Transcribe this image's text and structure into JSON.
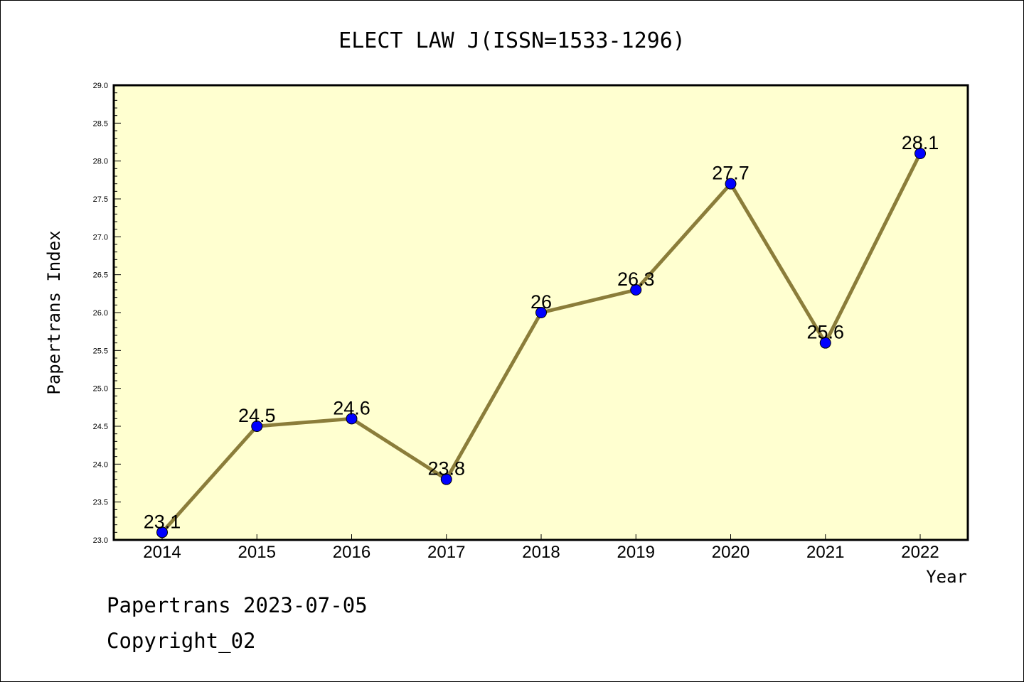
{
  "chart_data": {
    "type": "line",
    "title": "ELECT LAW J(ISSN=1533-1296)",
    "xlabel": "Year",
    "ylabel": "Papertrans Index",
    "categories": [
      "2014",
      "2015",
      "2016",
      "2017",
      "2018",
      "2019",
      "2020",
      "2021",
      "2022"
    ],
    "values": [
      23.1,
      24.5,
      24.6,
      23.8,
      26,
      26.3,
      27.7,
      25.6,
      28.1
    ],
    "data_labels": [
      "23.1",
      "24.5",
      "24.6",
      "23.8",
      "26",
      "26.3",
      "27.7",
      "25.6",
      "28.1"
    ],
    "ylim": [
      23.0,
      29.0
    ],
    "yticks": [
      "23.0",
      "23.5",
      "24.0",
      "24.5",
      "25.0",
      "25.5",
      "26.0",
      "26.5",
      "27.0",
      "27.5",
      "28.0",
      "28.5",
      "29.0"
    ],
    "grid": false,
    "colors": {
      "plot_background": "#ffffd0",
      "line": "#8b7d3a",
      "marker": "#0000ff"
    }
  },
  "footer": {
    "line1": "Papertrans 2023-07-05",
    "line2": "Copyright_02"
  }
}
